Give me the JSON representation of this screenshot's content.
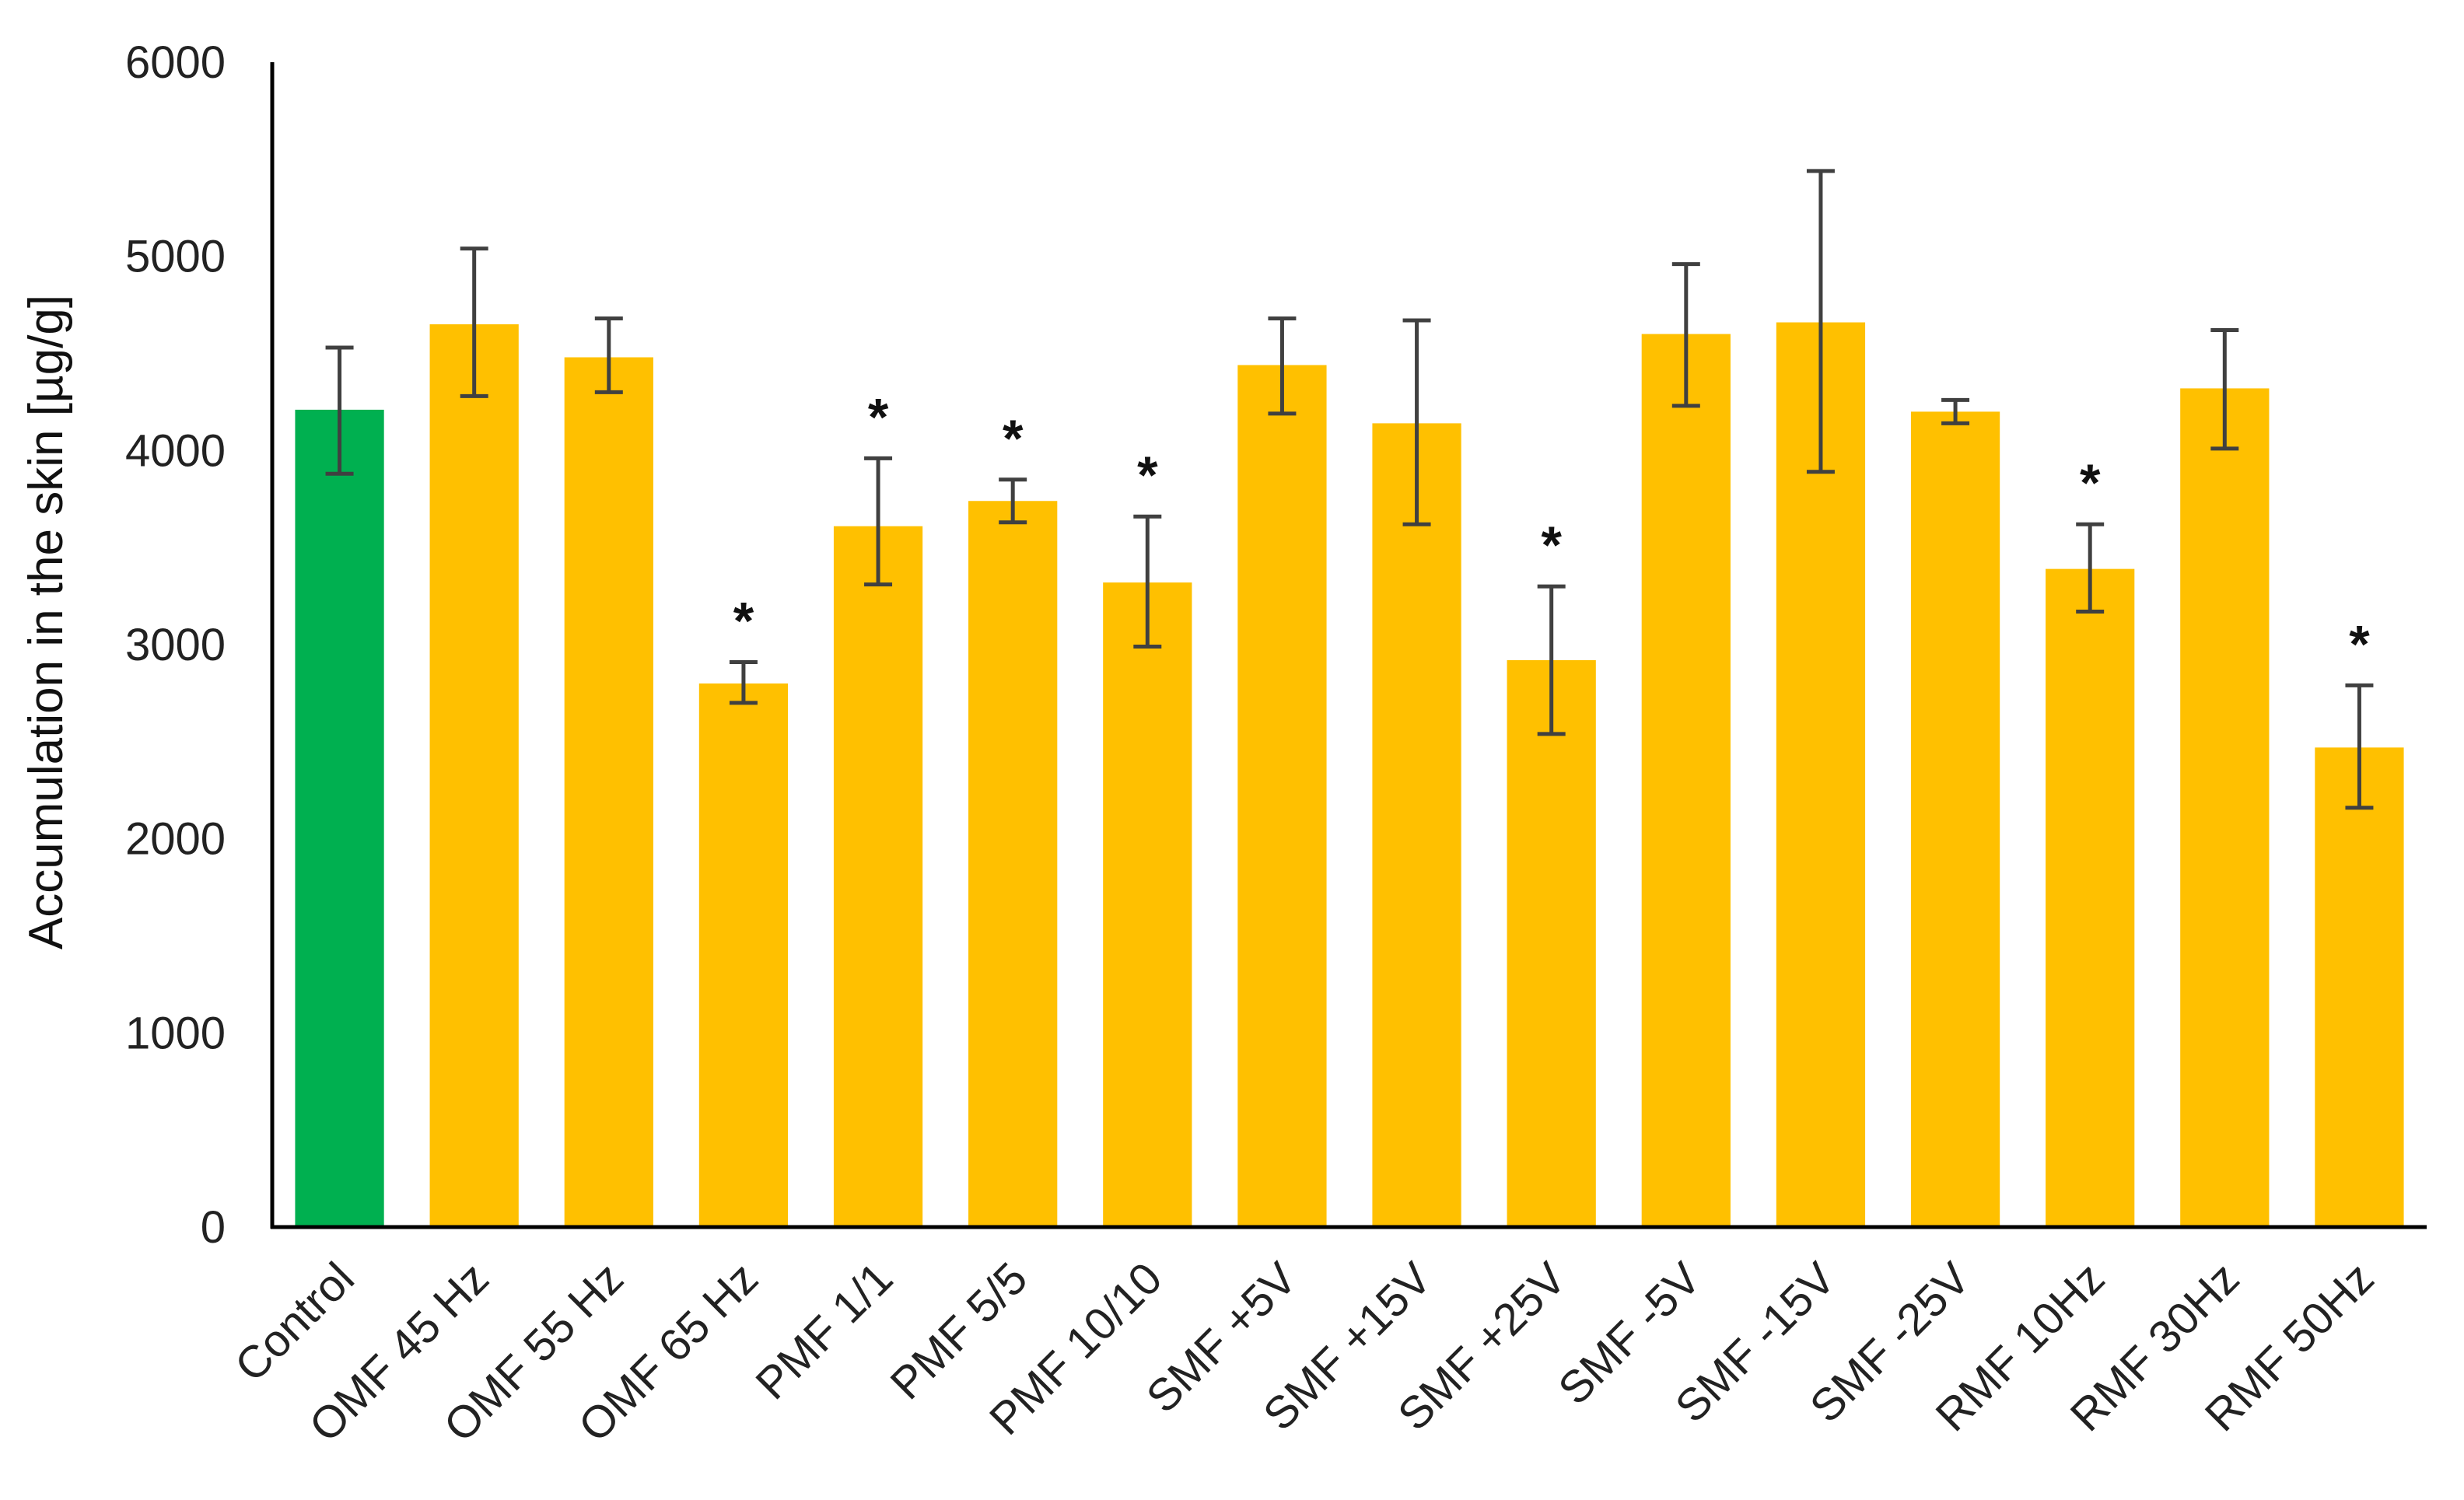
{
  "chart_data": {
    "type": "bar",
    "ylabel": "Accumulation in the skin [µg/g]",
    "xlabel": "",
    "ylim": [
      0,
      6000
    ],
    "yticks": [
      0,
      1000,
      2000,
      3000,
      4000,
      5000,
      6000
    ],
    "grid": false,
    "categories": [
      "Control",
      "OMF 45 Hz",
      "OMF 55 Hz",
      "OMF 65 Hz",
      "PMF 1/1",
      "PMF 5/5",
      "PMF 10/10",
      "SMF +5V",
      "SMF +15V",
      "SMF +25V",
      "SMF -5V",
      "SMF -15V",
      "SMF -25V",
      "RMF 10Hz",
      "RMF 30Hz",
      "RMF 50Hz"
    ],
    "values": [
      4210,
      4650,
      4480,
      2800,
      3610,
      3740,
      3320,
      4440,
      4140,
      2920,
      4600,
      4660,
      4200,
      3390,
      4320,
      2470
    ],
    "error_low": [
      3880,
      4280,
      4300,
      2700,
      3310,
      3630,
      2990,
      4190,
      3620,
      2540,
      4230,
      3890,
      4140,
      3170,
      4010,
      2160
    ],
    "error_high": [
      4530,
      5040,
      4680,
      2910,
      3960,
      3850,
      3660,
      4680,
      4670,
      3300,
      4960,
      5440,
      4260,
      3620,
      4620,
      2790
    ],
    "significant": [
      false,
      false,
      false,
      true,
      true,
      true,
      true,
      false,
      false,
      true,
      false,
      false,
      false,
      true,
      false,
      true
    ],
    "significance_marker": "*",
    "colors": {
      "control": "#00b050",
      "treatment": "#ffc000",
      "error_bar": "#404040",
      "axis": "#000000"
    }
  }
}
